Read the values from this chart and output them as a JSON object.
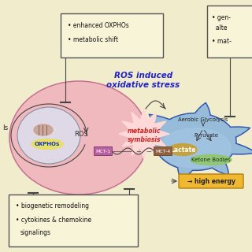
{
  "bg_color": "#f0eccc",
  "ros_text": "ROS induced\noxidative stress",
  "ros_color": "#2222cc",
  "metabolic_text": "metabolic\nsymbiosis",
  "metabolic_color": "#cc2222",
  "mct1_text": "MCT-1",
  "mct4_text": "MCT-4",
  "oxphos_text": "OXPHOs",
  "ros_label": "ROS",
  "aerobic_text": "Aerobic Glycolysis",
  "pyruvate_text": "Pyruvate",
  "lactate_text": "Lactate",
  "ketone_text": "Ketone Bodies",
  "high_energy_text": "→ high energy",
  "box1_lines": [
    "enhanced OXPHOs",
    "metabolic shift"
  ],
  "box2_line1": "• gen-",
  "box2_line2": "  alte",
  "box2_line3": "• mat-",
  "box3_lines": [
    "biogenetic remodeling",
    "cytokines & chemokine",
    "signalings"
  ],
  "left_label": "ls",
  "pink_cell_color": "#f0a8b8",
  "inner_circle_color": "#dcdcec",
  "nucleus_color": "#c8a090",
  "oxphos_bg": "#e8e060",
  "neuron_color": "#7aace0",
  "neuron_inner_color": "#a8c8e8",
  "lactate_color": "#c8a030",
  "ketone_color": "#90c860",
  "high_energy_color": "#f0b830",
  "mct_rect_color": "#b860a0",
  "mct4_rect_color": "#906040",
  "line_color": "#444444",
  "box_face": "#f8f4d8",
  "box_edge": "#555555"
}
